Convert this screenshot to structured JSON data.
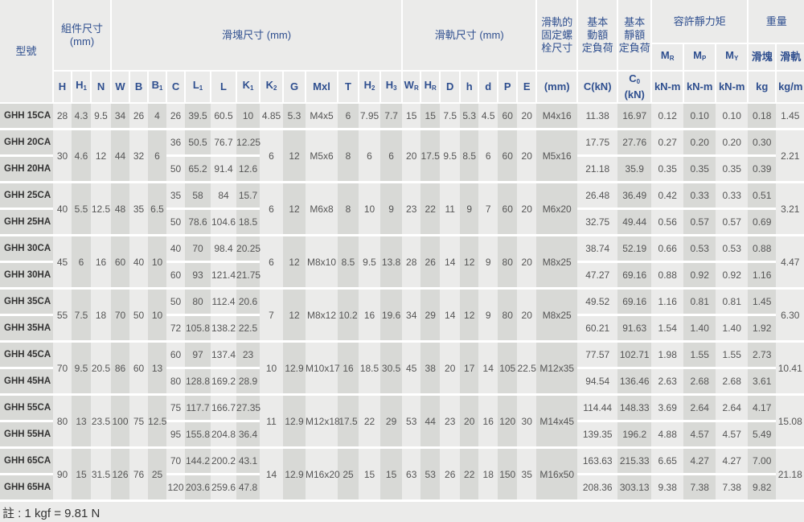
{
  "header": {
    "model": "型號",
    "assembly": "組件尺寸\n(mm)",
    "block": "滑塊尺寸 (mm)",
    "rail": "滑軌尺寸 (mm)",
    "bolt": "滑軌的\n固定螺\n栓尺寸",
    "dynamic": "基本\n動額\n定負荷",
    "static": "基本\n靜額\n定負荷",
    "moment": "容許靜力矩",
    "weight": "重量",
    "sub_row": [
      {
        "t": "M",
        "s": "R"
      },
      {
        "t": "M",
        "s": "P"
      },
      {
        "t": "M",
        "s": "Y"
      },
      {
        "t": "滑塊",
        "s": ""
      },
      {
        "t": "滑軌",
        "s": ""
      }
    ],
    "columns": [
      {
        "t": "H",
        "s": ""
      },
      {
        "t": "H",
        "s": "1"
      },
      {
        "t": "N",
        "s": ""
      },
      {
        "t": "W",
        "s": ""
      },
      {
        "t": "B",
        "s": ""
      },
      {
        "t": "B",
        "s": "1"
      },
      {
        "t": "C",
        "s": ""
      },
      {
        "t": "L",
        "s": "1"
      },
      {
        "t": "L",
        "s": ""
      },
      {
        "t": "K",
        "s": "1"
      },
      {
        "t": "K",
        "s": "2"
      },
      {
        "t": "G",
        "s": ""
      },
      {
        "t": "Mxl",
        "s": ""
      },
      {
        "t": "T",
        "s": ""
      },
      {
        "t": "H",
        "s": "2"
      },
      {
        "t": "H",
        "s": "3"
      },
      {
        "t": "W",
        "s": "R"
      },
      {
        "t": "H",
        "s": "R"
      },
      {
        "t": "D",
        "s": ""
      },
      {
        "t": "h",
        "s": ""
      },
      {
        "t": "d",
        "s": ""
      },
      {
        "t": "P",
        "s": ""
      },
      {
        "t": "E",
        "s": ""
      },
      {
        "t": "(mm)",
        "s": ""
      },
      {
        "t": "C(kN)",
        "s": ""
      },
      {
        "t": "C",
        "s": "0",
        "u": " (kN)"
      },
      {
        "t": "kN-m",
        "s": ""
      },
      {
        "t": "kN-m",
        "s": ""
      },
      {
        "t": "kN-m",
        "s": ""
      },
      {
        "t": "kg",
        "s": ""
      },
      {
        "t": "kg/m",
        "s": ""
      }
    ]
  },
  "groups": [
    {
      "shared": [
        "28",
        "4.3",
        "9.5",
        "34",
        "26",
        "4",
        "4.85",
        "5.3",
        "M4x5",
        "6",
        "7.95",
        "7.7",
        "15",
        "15",
        "7.5",
        "5.3",
        "4.5",
        "60",
        "20",
        "M4x16",
        "1.45"
      ],
      "rows": [
        {
          "model": "GHH 15CA",
          "vals": [
            "26",
            "39.5",
            "60.5",
            "10",
            "11.38",
            "16.97",
            "0.12",
            "0.10",
            "0.10",
            "0.18"
          ]
        }
      ]
    },
    {
      "shared": [
        "30",
        "4.6",
        "12",
        "44",
        "32",
        "6",
        "6",
        "12",
        "M5x6",
        "8",
        "6",
        "6",
        "20",
        "17.5",
        "9.5",
        "8.5",
        "6",
        "60",
        "20",
        "M5x16",
        "2.21"
      ],
      "rows": [
        {
          "model": "GHH 20CA",
          "vals": [
            "36",
            "50.5",
            "76.7",
            "12.25",
            "17.75",
            "27.76",
            "0.27",
            "0.20",
            "0.20",
            "0.30"
          ]
        },
        {
          "model": "GHH 20HA",
          "vals": [
            "50",
            "65.2",
            "91.4",
            "12.6",
            "21.18",
            "35.9",
            "0.35",
            "0.35",
            "0.35",
            "0.39"
          ]
        }
      ]
    },
    {
      "shared": [
        "40",
        "5.5",
        "12.5",
        "48",
        "35",
        "6.5",
        "6",
        "12",
        "M6x8",
        "8",
        "10",
        "9",
        "23",
        "22",
        "11",
        "9",
        "7",
        "60",
        "20",
        "M6x20",
        "3.21"
      ],
      "rows": [
        {
          "model": "GHH 25CA",
          "vals": [
            "35",
            "58",
            "84",
            "15.7",
            "26.48",
            "36.49",
            "0.42",
            "0.33",
            "0.33",
            "0.51"
          ]
        },
        {
          "model": "GHH 25HA",
          "vals": [
            "50",
            "78.6",
            "104.6",
            "18.5",
            "32.75",
            "49.44",
            "0.56",
            "0.57",
            "0.57",
            "0.69"
          ]
        }
      ]
    },
    {
      "shared": [
        "45",
        "6",
        "16",
        "60",
        "40",
        "10",
        "6",
        "12",
        "M8x10",
        "8.5",
        "9.5",
        "13.8",
        "28",
        "26",
        "14",
        "12",
        "9",
        "80",
        "20",
        "M8x25",
        "4.47"
      ],
      "rows": [
        {
          "model": "GHH 30CA",
          "vals": [
            "40",
            "70",
            "98.4",
            "20.25",
            "38.74",
            "52.19",
            "0.66",
            "0.53",
            "0.53",
            "0.88"
          ]
        },
        {
          "model": "GHH 30HA",
          "vals": [
            "60",
            "93",
            "121.4",
            "21.75",
            "47.27",
            "69.16",
            "0.88",
            "0.92",
            "0.92",
            "1.16"
          ]
        }
      ]
    },
    {
      "shared": [
        "55",
        "7.5",
        "18",
        "70",
        "50",
        "10",
        "7",
        "12",
        "M8x12",
        "10.2",
        "16",
        "19.6",
        "34",
        "29",
        "14",
        "12",
        "9",
        "80",
        "20",
        "M8x25",
        "6.30"
      ],
      "rows": [
        {
          "model": "GHH 35CA",
          "vals": [
            "50",
            "80",
            "112.4",
            "20.6",
            "49.52",
            "69.16",
            "1.16",
            "0.81",
            "0.81",
            "1.45"
          ]
        },
        {
          "model": "GHH 35HA",
          "vals": [
            "72",
            "105.8",
            "138.2",
            "22.5",
            "60.21",
            "91.63",
            "1.54",
            "1.40",
            "1.40",
            "1.92"
          ]
        }
      ]
    },
    {
      "shared": [
        "70",
        "9.5",
        "20.5",
        "86",
        "60",
        "13",
        "10",
        "12.9",
        "M10x17",
        "16",
        "18.5",
        "30.5",
        "45",
        "38",
        "20",
        "17",
        "14",
        "105",
        "22.5",
        "M12x35",
        "10.41"
      ],
      "rows": [
        {
          "model": "GHH 45CA",
          "vals": [
            "60",
            "97",
            "137.4",
            "23",
            "77.57",
            "102.71",
            "1.98",
            "1.55",
            "1.55",
            "2.73"
          ]
        },
        {
          "model": "GHH 45HA",
          "vals": [
            "80",
            "128.8",
            "169.2",
            "28.9",
            "94.54",
            "136.46",
            "2.63",
            "2.68",
            "2.68",
            "3.61"
          ]
        }
      ]
    },
    {
      "shared": [
        "80",
        "13",
        "23.5",
        "100",
        "75",
        "12.5",
        "11",
        "12.9",
        "M12x18",
        "17.5",
        "22",
        "29",
        "53",
        "44",
        "23",
        "20",
        "16",
        "120",
        "30",
        "M14x45",
        "15.08"
      ],
      "rows": [
        {
          "model": "GHH 55CA",
          "vals": [
            "75",
            "117.7",
            "166.7",
            "27.35",
            "114.44",
            "148.33",
            "3.69",
            "2.64",
            "2.64",
            "4.17"
          ]
        },
        {
          "model": "GHH 55HA",
          "vals": [
            "95",
            "155.8",
            "204.8",
            "36.4",
            "139.35",
            "196.2",
            "4.88",
            "4.57",
            "4.57",
            "5.49"
          ]
        }
      ]
    },
    {
      "shared": [
        "90",
        "15",
        "31.5",
        "126",
        "76",
        "25",
        "14",
        "12.9",
        "M16x20",
        "25",
        "15",
        "15",
        "63",
        "53",
        "26",
        "22",
        "18",
        "150",
        "35",
        "M16x50",
        "21.18"
      ],
      "rows": [
        {
          "model": "GHH 65CA",
          "vals": [
            "70",
            "144.2",
            "200.2",
            "43.1",
            "163.63",
            "215.33",
            "6.65",
            "4.27",
            "4.27",
            "7.00"
          ]
        },
        {
          "model": "GHH 65HA",
          "vals": [
            "120",
            "203.6",
            "259.6",
            "47.8",
            "208.36",
            "303.13",
            "9.38",
            "7.38",
            "7.38",
            "9.82"
          ]
        }
      ]
    }
  ],
  "note": "註 : 1 kgf = 9.81 N"
}
